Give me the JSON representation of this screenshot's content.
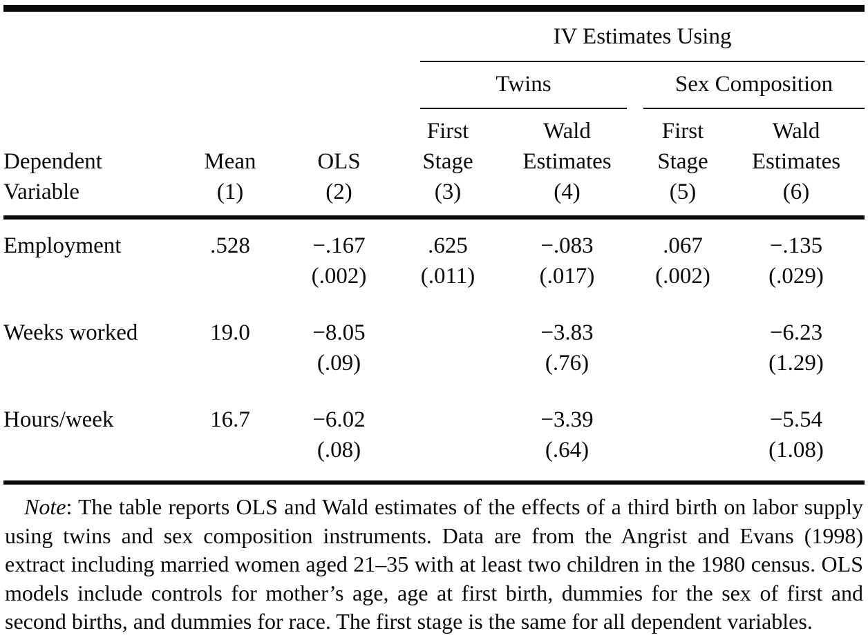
{
  "table": {
    "group_header": "IV Estimates Using",
    "subgroup_twins": "Twins",
    "subgroup_sex": "Sex Composition",
    "columns": {
      "dependent": {
        "line1": "Dependent",
        "line2": "Variable"
      },
      "mean": {
        "label": "Mean",
        "number": "(1)"
      },
      "ols": {
        "label": "OLS",
        "number": "(2)"
      },
      "twins_first_stage": {
        "line1": "First",
        "line2": "Stage",
        "number": "(3)"
      },
      "twins_wald": {
        "line1": "Wald",
        "line2": "Estimates",
        "number": "(4)"
      },
      "sex_first_stage": {
        "line1": "First",
        "line2": "Stage",
        "number": "(5)"
      },
      "sex_wald": {
        "line1": "Wald",
        "line2": "Estimates",
        "number": "(6)"
      }
    },
    "rows": [
      {
        "label": "Employment",
        "mean": ".528",
        "ols": "−.167",
        "ols_se": "(.002)",
        "twins_fs": ".625",
        "twins_fs_se": "(.011)",
        "twins_wald": "−.083",
        "twins_wald_se": "(.017)",
        "sex_fs": ".067",
        "sex_fs_se": "(.002)",
        "sex_wald": "−.135",
        "sex_wald_se": "(.029)"
      },
      {
        "label": "Weeks worked",
        "mean": "19.0",
        "ols": "−8.05",
        "ols_se": "(.09)",
        "twins_fs": "",
        "twins_fs_se": "",
        "twins_wald": "−3.83",
        "twins_wald_se": "(.76)",
        "sex_fs": "",
        "sex_fs_se": "",
        "sex_wald": "−6.23",
        "sex_wald_se": "(1.29)"
      },
      {
        "label": "Hours/week",
        "mean": "16.7",
        "ols": "−6.02",
        "ols_se": "(.08)",
        "twins_fs": "",
        "twins_fs_se": "",
        "twins_wald": "−3.39",
        "twins_wald_se": "(.64)",
        "sex_fs": "",
        "sex_fs_se": "",
        "sex_wald": "−5.54",
        "sex_wald_se": "(1.08)"
      }
    ]
  },
  "note": {
    "label": "Note",
    "text": ": The table reports OLS and Wald estimates of the effects of a third birth on labor supply using twins and sex composition instruments. Data are from the Angrist and Evans (1998) extract including married women aged 21–35 with at least two children in the 1980 census. OLS models include controls for mother’s age, age at first birth, dummies for the sex of first and second births, and dummies for race. The first stage is the same for all dependent variables."
  }
}
